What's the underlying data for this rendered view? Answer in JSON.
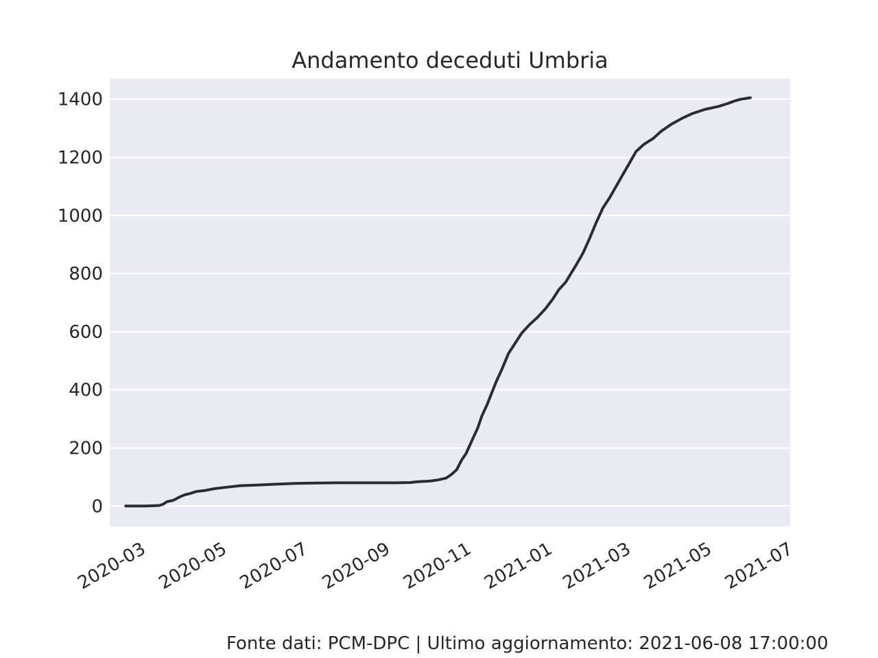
{
  "chart_data": {
    "type": "line",
    "title": "Andamento deceduti Umbria",
    "xlabel": "",
    "ylabel": "",
    "grid": true,
    "x_ticks": [
      "2020-03",
      "2020-05",
      "2020-07",
      "2020-09",
      "2020-11",
      "2021-01",
      "2021-03",
      "2021-05",
      "2021-07"
    ],
    "y_ticks": [
      "0",
      "200",
      "400",
      "600",
      "800",
      "1000",
      "1200",
      "1400"
    ],
    "xlim": [
      "2020-02-12",
      "2021-07-08"
    ],
    "ylim": [
      -70,
      1470
    ],
    "series": [
      {
        "color": "#2b2b33",
        "points": [
          [
            "2020-02-24",
            0
          ],
          [
            "2020-03-01",
            0
          ],
          [
            "2020-03-10",
            0
          ],
          [
            "2020-03-15",
            1
          ],
          [
            "2020-03-20",
            2
          ],
          [
            "2020-03-23",
            6
          ],
          [
            "2020-03-26",
            15
          ],
          [
            "2020-03-31",
            20
          ],
          [
            "2020-04-04",
            30
          ],
          [
            "2020-04-08",
            38
          ],
          [
            "2020-04-13",
            44
          ],
          [
            "2020-04-17",
            50
          ],
          [
            "2020-04-23",
            53
          ],
          [
            "2020-05-01",
            60
          ],
          [
            "2020-05-10",
            65
          ],
          [
            "2020-05-20",
            70
          ],
          [
            "2020-06-01",
            72
          ],
          [
            "2020-06-15",
            75
          ],
          [
            "2020-07-01",
            78
          ],
          [
            "2020-07-15",
            79
          ],
          [
            "2020-08-01",
            80
          ],
          [
            "2020-09-01",
            80
          ],
          [
            "2020-09-15",
            80
          ],
          [
            "2020-09-25",
            81
          ],
          [
            "2020-10-01",
            84
          ],
          [
            "2020-10-10",
            86
          ],
          [
            "2020-10-16",
            90
          ],
          [
            "2020-10-22",
            96
          ],
          [
            "2020-10-26",
            108
          ],
          [
            "2020-10-30",
            125
          ],
          [
            "2020-11-03",
            160
          ],
          [
            "2020-11-06",
            180
          ],
          [
            "2020-11-10",
            220
          ],
          [
            "2020-11-15",
            270
          ],
          [
            "2020-11-18",
            310
          ],
          [
            "2020-11-22",
            350
          ],
          [
            "2020-11-25",
            385
          ],
          [
            "2020-11-29",
            430
          ],
          [
            "2020-12-03",
            470
          ],
          [
            "2020-12-08",
            525
          ],
          [
            "2020-12-13",
            560
          ],
          [
            "2020-12-18",
            595
          ],
          [
            "2020-12-24",
            625
          ],
          [
            "2020-12-30",
            650
          ],
          [
            "2021-01-05",
            680
          ],
          [
            "2021-01-10",
            710
          ],
          [
            "2021-01-15",
            745
          ],
          [
            "2021-01-20",
            770
          ],
          [
            "2021-01-24",
            800
          ],
          [
            "2021-01-28",
            830
          ],
          [
            "2021-02-02",
            870
          ],
          [
            "2021-02-07",
            920
          ],
          [
            "2021-02-12",
            975
          ],
          [
            "2021-02-17",
            1025
          ],
          [
            "2021-02-22",
            1060
          ],
          [
            "2021-02-27",
            1100
          ],
          [
            "2021-03-04",
            1140
          ],
          [
            "2021-03-09",
            1180
          ],
          [
            "2021-03-14",
            1220
          ],
          [
            "2021-03-20",
            1245
          ],
          [
            "2021-03-27",
            1265
          ],
          [
            "2021-04-02",
            1290
          ],
          [
            "2021-04-10",
            1315
          ],
          [
            "2021-04-18",
            1335
          ],
          [
            "2021-04-25",
            1350
          ],
          [
            "2021-05-05",
            1365
          ],
          [
            "2021-05-15",
            1375
          ],
          [
            "2021-05-22",
            1385
          ],
          [
            "2021-05-28",
            1395
          ],
          [
            "2021-06-01",
            1400
          ],
          [
            "2021-06-08",
            1405
          ]
        ]
      }
    ],
    "colors": {
      "plot_background": "#eaeaf2",
      "grid": "#ffffff",
      "text": "#262626"
    }
  },
  "footer": {
    "source_text": "Fonte dati: PCM-DPC | Ultimo aggiornamento: 2021-06-08 17:00:00"
  }
}
